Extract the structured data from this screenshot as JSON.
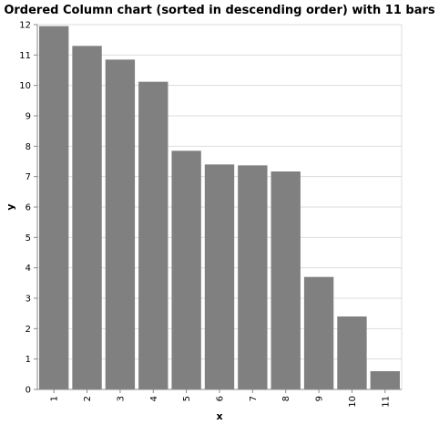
{
  "chart_data": {
    "type": "bar",
    "title": "Ordered Column chart (sorted in descending order) with 11 bars",
    "xlabel": "x",
    "ylabel": "y",
    "categories": [
      "1",
      "2",
      "3",
      "4",
      "5",
      "6",
      "7",
      "8",
      "9",
      "10",
      "11"
    ],
    "values": [
      11.95,
      11.3,
      10.85,
      10.12,
      7.85,
      7.4,
      7.37,
      7.17,
      3.7,
      2.4,
      0.6
    ],
    "ylim": [
      0,
      12
    ],
    "yticks": [
      0,
      1,
      2,
      3,
      4,
      5,
      6,
      7,
      8,
      9,
      10,
      11,
      12
    ],
    "grid": true,
    "bar_color": "#808080"
  }
}
